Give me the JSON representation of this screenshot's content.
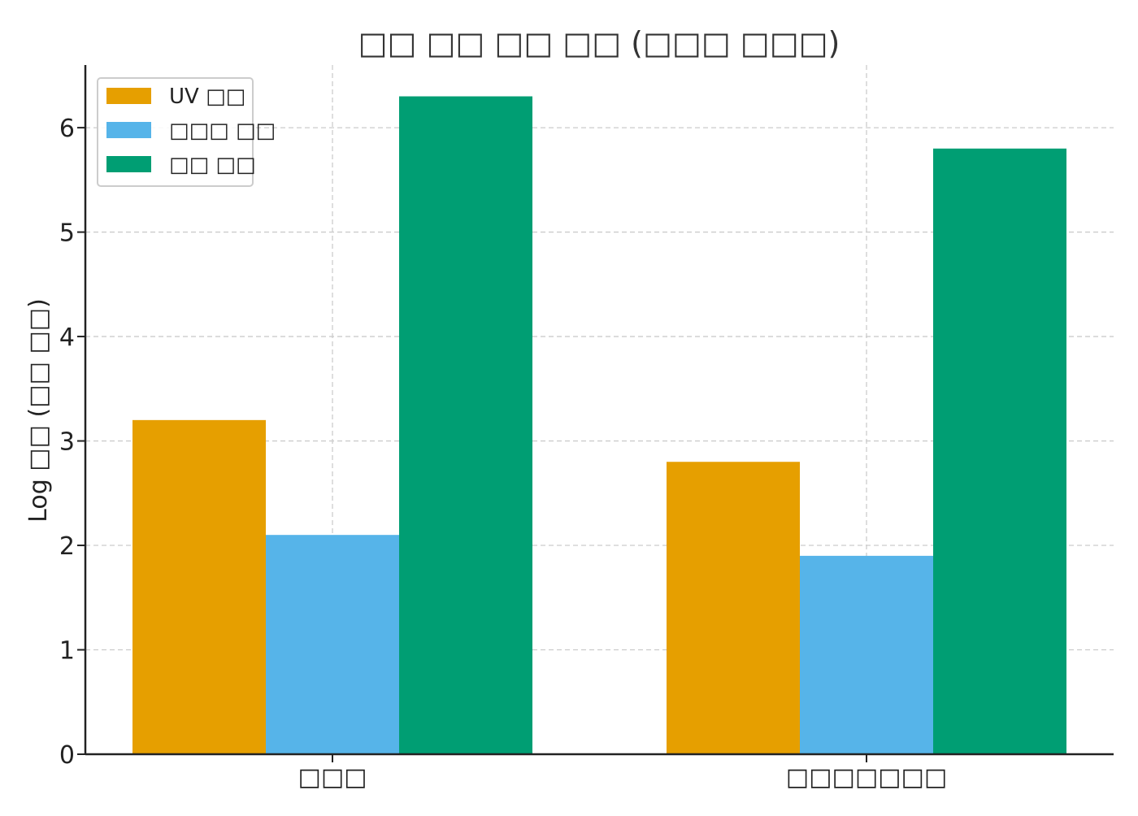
{
  "chart_data": {
    "type": "bar",
    "title": "□□ □□ □□ □□ (□□□ □□□)",
    "ylabel": "Log □□ (□□ □□)",
    "xlabel": "",
    "categories": [
      "□□□",
      "□□□□□□□"
    ],
    "series": [
      {
        "name": "UV □□",
        "color": "#E69F00",
        "values": [
          3.2,
          2.8
        ]
      },
      {
        "name": "□□□ □□",
        "color": "#56B4E9",
        "values": [
          2.1,
          1.9
        ]
      },
      {
        "name": "□□ □□",
        "color": "#009E73",
        "values": [
          6.3,
          5.8
        ]
      }
    ],
    "ylim": [
      0,
      6.6
    ],
    "yticks": [
      0,
      1,
      2,
      3,
      4,
      5,
      6
    ],
    "grid": true,
    "legend_position": "top-left"
  }
}
